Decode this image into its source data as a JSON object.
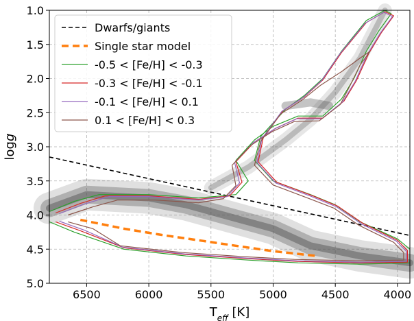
{
  "chart_data": {
    "type": "scatter",
    "title": "",
    "xlabel": "Teff [K]",
    "ylabel": "logg",
    "xlim": [
      6800,
      3900
    ],
    "ylim": [
      1.0,
      5.0
    ],
    "x_inverted": true,
    "y_inverted": true,
    "grid": true,
    "legend_position": "top-left",
    "x_ticks": [
      6500,
      6000,
      5500,
      5000,
      4500,
      4000
    ],
    "x_tick_labels": [
      "6500",
      "6000",
      "5500",
      "5000",
      "4500",
      "4000"
    ],
    "y_ticks": [
      1.0,
      1.5,
      2.0,
      2.5,
      3.0,
      3.5,
      4.0,
      4.5,
      5.0
    ],
    "y_tick_labels": [
      "1.0",
      "1.5",
      "2.0",
      "2.5",
      "3.0",
      "3.5",
      "4.0",
      "4.5",
      "5.0"
    ],
    "background_density": {
      "color": "#555555",
      "main_sequence": [
        [
          6800,
          3.9
        ],
        [
          6500,
          3.7
        ],
        [
          6000,
          3.75
        ],
        [
          5700,
          3.85
        ],
        [
          5400,
          4.0
        ],
        [
          5000,
          4.2
        ],
        [
          4700,
          4.45
        ],
        [
          4300,
          4.6
        ],
        [
          3900,
          4.7
        ]
      ],
      "giant_branch": [
        [
          5500,
          3.6
        ],
        [
          5200,
          3.3
        ],
        [
          4900,
          2.9
        ],
        [
          4700,
          2.6
        ],
        [
          4500,
          2.2
        ],
        [
          4300,
          1.7
        ],
        [
          4100,
          1.0
        ]
      ],
      "red_clump": [
        [
          4900,
          2.4
        ],
        [
          4700,
          2.35
        ],
        [
          4550,
          2.4
        ]
      ]
    },
    "series": [
      {
        "name": "Dwarfs/giants",
        "style": "dashed",
        "color": "#000000",
        "x": [
          6800,
          3900
        ],
        "y": [
          3.15,
          4.3
        ]
      },
      {
        "name": "Single star model",
        "style": "dashed",
        "color": "#ff7f0e",
        "x": [
          6550,
          6200,
          5900,
          5600,
          5300,
          5000,
          4700,
          4650
        ],
        "y": [
          4.07,
          4.2,
          4.29,
          4.37,
          4.45,
          4.53,
          4.59,
          4.6
        ]
      },
      {
        "name": "-0.5 < [Fe/H] < -0.3",
        "style": "solid",
        "color": "#2ca02c",
        "x": [
          6800,
          6600,
          6400,
          6000,
          5600,
          5300,
          5200,
          5300,
          5150,
          5000,
          4800,
          4600,
          4450,
          4350,
          4250,
          4150,
          4050,
          4100,
          4250,
          4450,
          4600,
          4750,
          4900,
          5100,
          5150,
          5000,
          4700,
          4500,
          4300,
          4000,
          3900,
          3900,
          4300,
          4800,
          5200,
          5700,
          6200,
          6600,
          6800
        ],
        "y": [
          3.95,
          3.8,
          3.7,
          3.7,
          3.75,
          3.7,
          3.5,
          3.2,
          2.9,
          2.7,
          2.55,
          2.55,
          2.3,
          2.0,
          1.6,
          1.3,
          1.05,
          1.0,
          1.15,
          1.6,
          2.0,
          2.25,
          2.45,
          2.85,
          3.2,
          3.5,
          3.7,
          3.85,
          4.1,
          4.35,
          4.5,
          4.7,
          4.72,
          4.7,
          4.66,
          4.6,
          4.5,
          4.25,
          4.1
        ]
      },
      {
        "name": "-0.3 < [Fe/H] < -0.1",
        "style": "solid",
        "color": "#d62728",
        "x": [
          6750,
          6550,
          6350,
          6000,
          5600,
          5350,
          5250,
          5300,
          5150,
          4980,
          4800,
          4600,
          4430,
          4330,
          4230,
          4130,
          4030,
          4100,
          4250,
          4450,
          4600,
          4750,
          4920,
          5080,
          5120,
          4970,
          4680,
          4480,
          4280,
          4000,
          3920,
          3920,
          4300,
          4800,
          5200,
          5700,
          6200,
          6550,
          6750
        ],
        "y": [
          3.97,
          3.83,
          3.72,
          3.72,
          3.77,
          3.72,
          3.52,
          3.22,
          2.93,
          2.73,
          2.58,
          2.58,
          2.33,
          2.03,
          1.63,
          1.33,
          1.08,
          1.02,
          1.18,
          1.62,
          2.02,
          2.27,
          2.47,
          2.87,
          3.22,
          3.52,
          3.72,
          3.87,
          4.12,
          4.37,
          4.52,
          4.69,
          4.7,
          4.68,
          4.64,
          4.58,
          4.48,
          4.23,
          4.1
        ]
      },
      {
        "name": "-0.1 < [Fe/H] <  0.1",
        "style": "solid",
        "color": "#9467bd",
        "x": [
          6720,
          6520,
          6320,
          6000,
          5600,
          5370,
          5270,
          5310,
          5160,
          4990,
          4810,
          4610,
          4440,
          4340,
          4240,
          4140,
          4040,
          4110,
          4260,
          4460,
          4610,
          4760,
          4930,
          5090,
          5130,
          4980,
          4690,
          4490,
          4290,
          4010,
          3930,
          3930,
          4310,
          4810,
          5210,
          5710,
          6210,
          6520,
          6720
        ],
        "y": [
          3.98,
          3.84,
          3.73,
          3.73,
          3.78,
          3.73,
          3.53,
          3.23,
          2.94,
          2.74,
          2.59,
          2.59,
          2.34,
          2.04,
          1.64,
          1.34,
          1.09,
          1.03,
          1.19,
          1.63,
          2.03,
          2.28,
          2.48,
          2.88,
          3.23,
          3.53,
          3.73,
          3.88,
          4.13,
          4.38,
          4.53,
          4.68,
          4.69,
          4.67,
          4.63,
          4.57,
          4.47,
          4.22,
          4.09
        ]
      },
      {
        "name": " 0.1 < [Fe/H] <  0.3",
        "style": "solid",
        "color": "#8c564b",
        "x": [
          6650,
          6450,
          6250,
          5950,
          5600,
          5400,
          5300,
          5330,
          5180,
          5010,
          4830,
          4630,
          4460,
          4380,
          4300,
          4220,
          4300,
          4450,
          4620,
          4770,
          4940,
          5100,
          5150,
          5000,
          4710,
          4510,
          4310,
          4030,
          3950,
          3950,
          4330,
          4830,
          5230,
          5730,
          6230,
          6450,
          6650
        ],
        "y": [
          4.0,
          3.88,
          3.78,
          3.78,
          3.82,
          3.76,
          3.57,
          3.27,
          2.98,
          2.78,
          2.63,
          2.62,
          2.38,
          2.1,
          1.8,
          1.6,
          1.7,
          1.9,
          2.1,
          2.32,
          2.52,
          2.92,
          3.27,
          3.56,
          3.76,
          3.9,
          4.15,
          4.4,
          4.55,
          4.66,
          4.67,
          4.65,
          4.61,
          4.55,
          4.45,
          4.2,
          4.1
        ]
      }
    ]
  }
}
